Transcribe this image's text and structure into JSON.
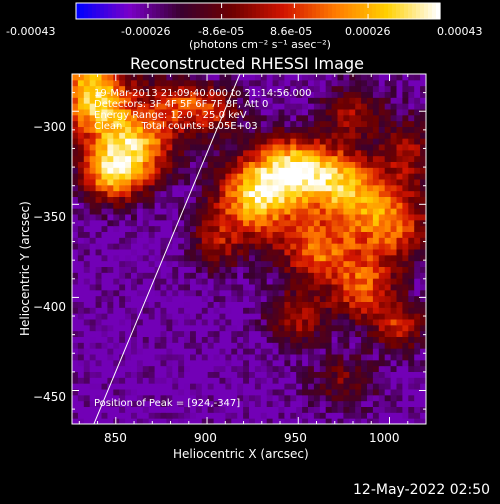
{
  "colorbar": {
    "ticks": [
      "-0.00043",
      "-0.00026",
      "-8.6e-05",
      "8.6e-05",
      "0.00026",
      "0.00043"
    ],
    "tick_values": [
      -0.00043,
      -0.00026,
      -8.6e-05,
      8.6e-05,
      0.00026,
      0.00043
    ],
    "range": [
      -0.00043,
      0.00043
    ],
    "unit_label": "(photons cm⁻² s⁻¹ asec⁻²)",
    "colors": [
      "#0000ff",
      "#7a00c8",
      "#3a0030",
      "#6e0000",
      "#d21400",
      "#ff7a00",
      "#ffd000",
      "#ffffff"
    ]
  },
  "annotations": {
    "time_range": "19-Mar-2013 21:09:40.000 to 21:14:56.000",
    "detectors": "Detectors: 3F 4F 5F 6F 7F 8F, Att 0",
    "energy_range": "Energy Range: 12.0 - 25.0 keV",
    "clean_counts": "Clean      Total counts: 8.05E+03",
    "peak_position": "Position of Peak = [924,-347]"
  },
  "footer": {
    "timestamp": "12-May-2022 02:50"
  },
  "chart_data": {
    "type": "heatmap",
    "title": "Reconstructed RHESSI Image",
    "xlabel": "Heliocentric X (arcsec)",
    "ylabel": "Heliocentric Y (arcsec)",
    "xlim": [
      826,
      1020
    ],
    "ylim": [
      -468,
      -280
    ],
    "x_ticks": [
      850,
      900,
      950,
      1000
    ],
    "y_ticks": [
      -300,
      -350,
      -400,
      -450
    ],
    "x_tick_labels": [
      "850",
      "900",
      "950",
      "1000"
    ],
    "y_tick_labels": [
      "−300",
      "−350",
      "−400",
      "−450"
    ],
    "peak": {
      "x": 924,
      "y": -347
    },
    "limb_line": {
      "points": [
        [
          838,
          -468
        ],
        [
          918,
          -280
        ]
      ]
    },
    "colorbar_range": [
      -0.00043,
      0.00043
    ],
    "grid": false,
    "description_of_structure": "bright emission upper-left (x 830-870, y -280 to -340) and a broad bright region centered near (935,-345) extending to (1010,-360) and (960,-420); low flux blue/purple background lower-left and along bottom"
  }
}
